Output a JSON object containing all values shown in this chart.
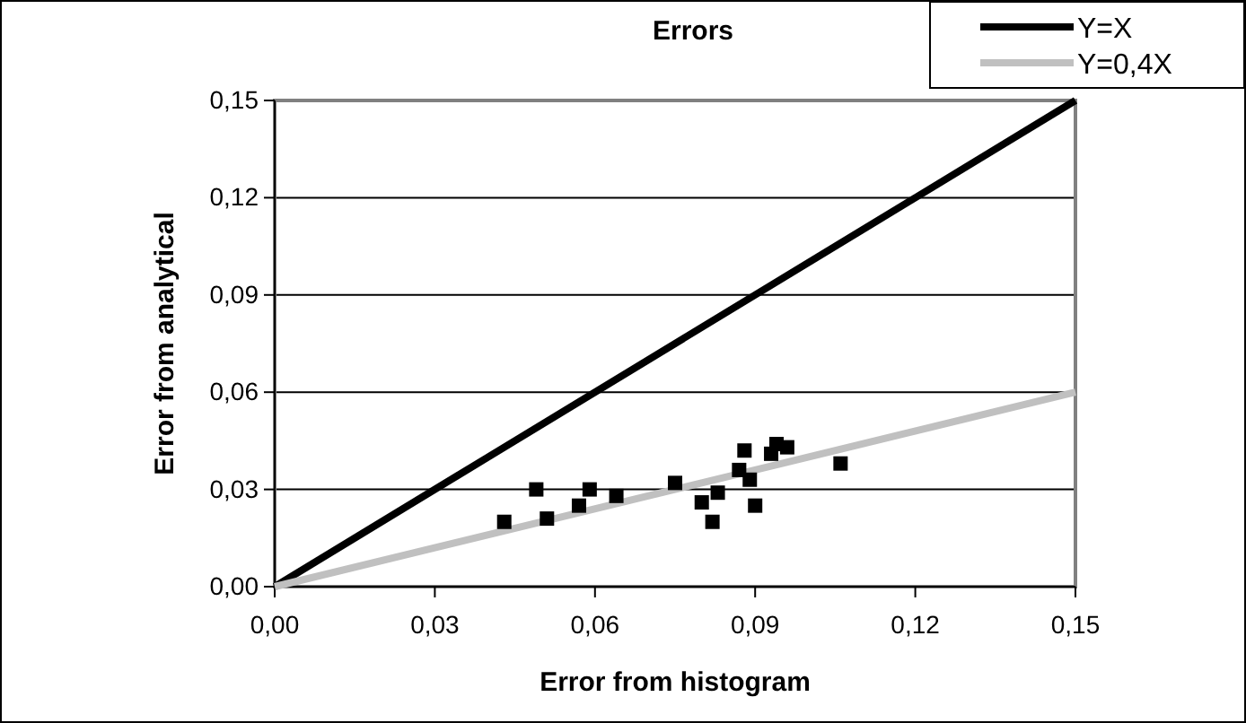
{
  "chart_data": {
    "type": "scatter",
    "title": "Errors",
    "xlabel": "Error from histogram",
    "ylabel": "Error from analytical",
    "xlim": [
      0,
      0.15
    ],
    "ylim": [
      0,
      0.15
    ],
    "xticks": [
      {
        "value": 0,
        "label": "0,00"
      },
      {
        "value": 0.03,
        "label": "0,03"
      },
      {
        "value": 0.06,
        "label": "0,06"
      },
      {
        "value": 0.09,
        "label": "0,09"
      },
      {
        "value": 0.12,
        "label": "0,12"
      },
      {
        "value": 0.15,
        "label": "0,15"
      }
    ],
    "yticks": [
      {
        "value": 0,
        "label": "0,00"
      },
      {
        "value": 0.03,
        "label": "0,03"
      },
      {
        "value": 0.06,
        "label": "0,06"
      },
      {
        "value": 0.09,
        "label": "0,09"
      },
      {
        "value": 0.12,
        "label": "0,12"
      },
      {
        "value": 0.15,
        "label": "0,15"
      }
    ],
    "grid": "y",
    "legend": "top right",
    "series": [
      {
        "marker": "square",
        "color": "#000000",
        "x": [
          0.043,
          0.049,
          0.051,
          0.057,
          0.059,
          0.064,
          0.075,
          0.08,
          0.082,
          0.083,
          0.087,
          0.088,
          0.089,
          0.09,
          0.093,
          0.094,
          0.096,
          0.106
        ],
        "values": [
          0.02,
          0.03,
          0.021,
          0.025,
          0.03,
          0.028,
          0.032,
          0.026,
          0.02,
          0.029,
          0.036,
          0.042,
          0.033,
          0.025,
          0.041,
          0.044,
          0.043,
          0.038
        ]
      },
      {
        "type": "line",
        "name": "Y=X",
        "color": "#000000",
        "x": [
          0,
          0.15
        ],
        "values": [
          0,
          0.15
        ]
      },
      {
        "type": "line",
        "name": "Y=0,4X",
        "color": "#c0c0c0",
        "x": [
          0,
          0.15
        ],
        "values": [
          0,
          0.06
        ]
      }
    ]
  }
}
